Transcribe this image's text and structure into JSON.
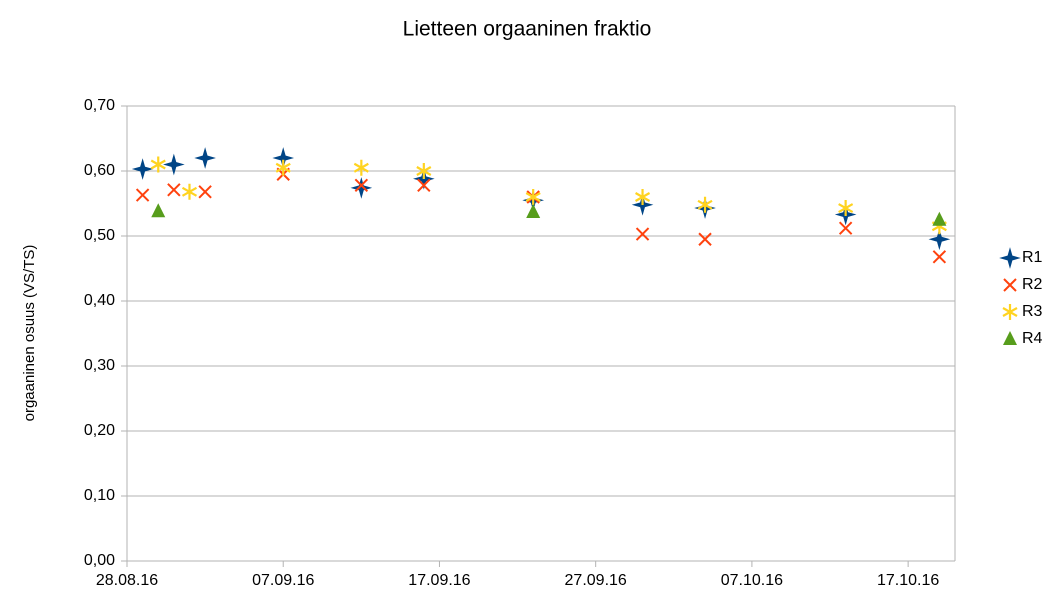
{
  "chart_data": {
    "type": "scatter",
    "title": "Lietteen orgaaninen fraktio",
    "y_label": "orgaaninen osuus (VS/TS)",
    "xlim": [
      "2016-08-28",
      "2016-10-20"
    ],
    "xticks": [
      {
        "value": "2016-08-28",
        "label": "28.08.16"
      },
      {
        "value": "2016-09-07",
        "label": "07.09.16"
      },
      {
        "value": "2016-09-17",
        "label": "17.09.16"
      },
      {
        "value": "2016-09-27",
        "label": "27.09.16"
      },
      {
        "value": "2016-10-07",
        "label": "07.10.16"
      },
      {
        "value": "2016-10-17",
        "label": "17.10.16"
      }
    ],
    "ylim": [
      0,
      0.7
    ],
    "yticks": [
      {
        "value": 0,
        "label": "0,00"
      },
      {
        "value": 0.1,
        "label": "0,10"
      },
      {
        "value": 0.2,
        "label": "0,20"
      },
      {
        "value": 0.3,
        "label": "0,30"
      },
      {
        "value": 0.4,
        "label": "0,40"
      },
      {
        "value": 0.5,
        "label": "0,50"
      },
      {
        "value": 0.6,
        "label": "0,60"
      },
      {
        "value": 0.7,
        "label": "0,70"
      }
    ],
    "grid": true,
    "legend": "right",
    "series": [
      {
        "name": "R1",
        "color": "#004586",
        "marker": "plus",
        "x": [
          "2016-08-29",
          "2016-08-31",
          "2016-09-02",
          "2016-09-07",
          "2016-09-12",
          "2016-09-16",
          "2016-09-23",
          "2016-09-30",
          "2016-10-04",
          "2016-10-13",
          "2016-10-19"
        ],
        "values": [
          0.603,
          0.61,
          0.62,
          0.62,
          0.574,
          0.588,
          0.555,
          0.548,
          0.543,
          0.533,
          0.495
        ]
      },
      {
        "name": "R2",
        "color": "#ff420e",
        "marker": "cross",
        "x": [
          "2016-08-29",
          "2016-08-31",
          "2016-09-02",
          "2016-09-07",
          "2016-09-12",
          "2016-09-16",
          "2016-09-23",
          "2016-09-30",
          "2016-10-04",
          "2016-10-13",
          "2016-10-19"
        ],
        "values": [
          0.563,
          0.571,
          0.568,
          0.595,
          0.578,
          0.578,
          0.56,
          0.503,
          0.495,
          0.512,
          0.468
        ]
      },
      {
        "name": "R3",
        "color": "#ffd320",
        "marker": "asterisk",
        "x": [
          "2016-08-30",
          "2016-09-01",
          "2016-09-07",
          "2016-09-12",
          "2016-09-16",
          "2016-09-23",
          "2016-09-30",
          "2016-10-04",
          "2016-10-13",
          "2016-10-19"
        ],
        "values": [
          0.61,
          0.568,
          0.605,
          0.605,
          0.6,
          0.56,
          0.56,
          0.548,
          0.543,
          0.515
        ]
      },
      {
        "name": "R4",
        "color": "#579d1c",
        "marker": "triangle",
        "x": [
          "2016-08-30",
          "2016-09-23",
          "2016-10-19"
        ],
        "values": [
          0.538,
          0.537,
          0.525
        ]
      }
    ]
  }
}
